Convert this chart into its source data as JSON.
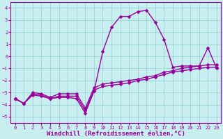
{
  "xlabel": "Windchill (Refroidissement éolien,°C)",
  "ylabel": "",
  "bg_color": "#c8eef0",
  "grid_color": "#a0d8dc",
  "line_color": "#990099",
  "xlim": [
    -0.5,
    23.5
  ],
  "ylim": [
    -5.5,
    4.5
  ],
  "yticks": [
    -5,
    -4,
    -3,
    -2,
    -1,
    0,
    1,
    2,
    3,
    4
  ],
  "xticks": [
    0,
    1,
    2,
    3,
    4,
    5,
    6,
    7,
    8,
    9,
    10,
    11,
    12,
    13,
    14,
    15,
    16,
    17,
    18,
    19,
    20,
    21,
    22,
    23
  ],
  "line1_x": [
    0,
    1,
    2,
    3,
    4,
    5,
    6,
    7,
    8,
    9,
    10,
    11,
    12,
    13,
    14,
    15,
    16,
    17,
    18,
    19,
    20,
    21,
    22,
    23
  ],
  "line1_y": [
    -3.5,
    -3.9,
    -3.1,
    -3.2,
    -3.5,
    -3.4,
    -3.4,
    -3.5,
    -4.7,
    -2.9,
    0.4,
    2.4,
    3.3,
    3.3,
    3.7,
    3.8,
    2.8,
    1.4,
    -0.9,
    -0.8,
    -0.8,
    -0.8,
    0.7,
    -1.0
  ],
  "line2_x": [
    0,
    1,
    2,
    3,
    4,
    5,
    6,
    7,
    8,
    9,
    10,
    11,
    12,
    13,
    14,
    15,
    16,
    17,
    18,
    19,
    20,
    21,
    22,
    23
  ],
  "line2_y": [
    -3.5,
    -3.9,
    -3.2,
    -3.3,
    -3.5,
    -3.3,
    -3.3,
    -3.3,
    -4.5,
    -2.8,
    -2.5,
    -2.4,
    -2.3,
    -2.2,
    -2.0,
    -1.9,
    -1.7,
    -1.5,
    -1.3,
    -1.2,
    -1.1,
    -1.0,
    -0.9,
    -0.9
  ],
  "line3_x": [
    0,
    1,
    2,
    3,
    4,
    5,
    6,
    7,
    8,
    9,
    10,
    11,
    12,
    13,
    14,
    15,
    16,
    17,
    18,
    19,
    20,
    21,
    22,
    23
  ],
  "line3_y": [
    -3.5,
    -3.9,
    -3.0,
    -3.1,
    -3.4,
    -3.1,
    -3.1,
    -3.1,
    -4.3,
    -2.6,
    -2.3,
    -2.2,
    -2.1,
    -2.0,
    -1.9,
    -1.7,
    -1.6,
    -1.3,
    -1.2,
    -1.0,
    -0.9,
    -0.8,
    -0.7,
    -0.7
  ],
  "marker": "D",
  "markersize": 2.5,
  "linewidth": 1.0,
  "tick_fontsize": 5,
  "label_fontsize": 6.5
}
